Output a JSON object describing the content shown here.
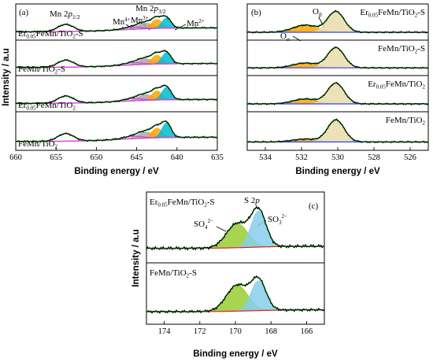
{
  "chart_data": [
    {
      "panel": "(a)",
      "type": "line",
      "xlabel": "Binding energy / eV",
      "ylabel": "Intensity / a.u",
      "xlim": [
        660,
        635
      ],
      "xticks": [
        660,
        655,
        650,
        645,
        640,
        635
      ],
      "stack_labels": [
        "Er0.05FeMn/TiO2-S",
        "FeMn/TiO2-S",
        "Er0.05FeMn/TiO2",
        "FeMn/TiO2"
      ],
      "stack_label_parts": [
        [
          "Er",
          "0.05",
          "FeMn/TiO",
          "2",
          "-S"
        ],
        [
          "FeMn/TiO",
          "2",
          "-S"
        ],
        [
          "Er",
          "0.05",
          "FeMn/TiO",
          "2"
        ],
        [
          "FeMn/TiO",
          "2"
        ]
      ],
      "annotations": [
        "Mn 2p1/2",
        "Mn 2p3/2",
        "Mn4+",
        "Mn3+",
        "Mn2+"
      ],
      "annotation_parts": {
        "p12": [
          "Mn  2",
          "p",
          "1/2"
        ],
        "p32": [
          "Mn  2",
          "p",
          "3/2"
        ],
        "mn4": [
          "Mn",
          "4+"
        ],
        "mn3": [
          "Mn",
          "3+"
        ],
        "mn2": [
          "Mn",
          "2+"
        ]
      },
      "peak_centers_eV": {
        "Mn 2p1/2": 653.8,
        "Mn4+": 643.9,
        "Mn3+": 642.5,
        "Mn2+": 641.3
      },
      "component_colors": {
        "Mn4+": "#a9a9a9",
        "Mn3+": "#ffa500",
        "Mn2+": "#00bcd4",
        "satellite": "#e040e0",
        "envelope": "#000000",
        "fit": "#20c020"
      }
    },
    {
      "panel": "(b)",
      "type": "line",
      "xlabel": "Binding energy / eV",
      "xlim": [
        535,
        525
      ],
      "xticks": [
        534,
        532,
        530,
        528,
        526
      ],
      "stack_labels": [
        "Er0.05FeMn/TiO2-S",
        "FeMn/TiO2-S",
        "Er0.05FeMn/TiO2",
        "FeMn/TiO2"
      ],
      "stack_label_parts": [
        [
          "Er",
          "0.05",
          "FeMn/TiO",
          "2",
          "-S"
        ],
        [
          "FeMn/TiO",
          "2",
          "-S"
        ],
        [
          "Er",
          "0.05",
          "FeMn/TiO",
          "2"
        ],
        [
          "FeMn/TiO",
          "2"
        ]
      ],
      "annotations": [
        "Oα",
        "Oβ"
      ],
      "annotation_parts": {
        "oa": [
          "O",
          "α"
        ],
        "ob": [
          "O",
          "β"
        ]
      },
      "peak_centers_eV": {
        "Oα": 531.8,
        "Oβ": 530.1
      },
      "component_colors": {
        "Oα": "#ffa500",
        "Oβ": "#eadcaa",
        "fit": "#20c020",
        "baseline": "#3040ff"
      }
    },
    {
      "panel": "(c)",
      "type": "line",
      "xlabel": "Binding energy / eV",
      "ylabel": "Intensity / a.u",
      "xlim": [
        175,
        165
      ],
      "xticks": [
        174,
        172,
        170,
        168,
        166
      ],
      "stack_labels": [
        "Er0.05FeMn/TiO2-S",
        "FeMn/TiO2-S"
      ],
      "stack_label_parts": [
        [
          "Er",
          "0.05",
          "FeMn/TiO",
          "2",
          "-S"
        ],
        [
          "FeMn/TiO",
          "2",
          "-S"
        ]
      ],
      "annotations": [
        "S 2p",
        "SO4 2−",
        "SO3 2−"
      ],
      "annotation_parts": {
        "s2p": [
          "S  2",
          "p"
        ],
        "so4": [
          "SO",
          "4",
          "2−"
        ],
        "so3": [
          "SO",
          "3",
          "2−"
        ]
      },
      "peak_centers_eV": {
        "SO4 2−": 169.9,
        "SO3 2−": 168.7
      },
      "component_colors": {
        "SO4 2−": "#9acd32",
        "SO3 2−": "#87ceeb",
        "fit": "#20c020",
        "baseline": "#e02020"
      }
    }
  ]
}
